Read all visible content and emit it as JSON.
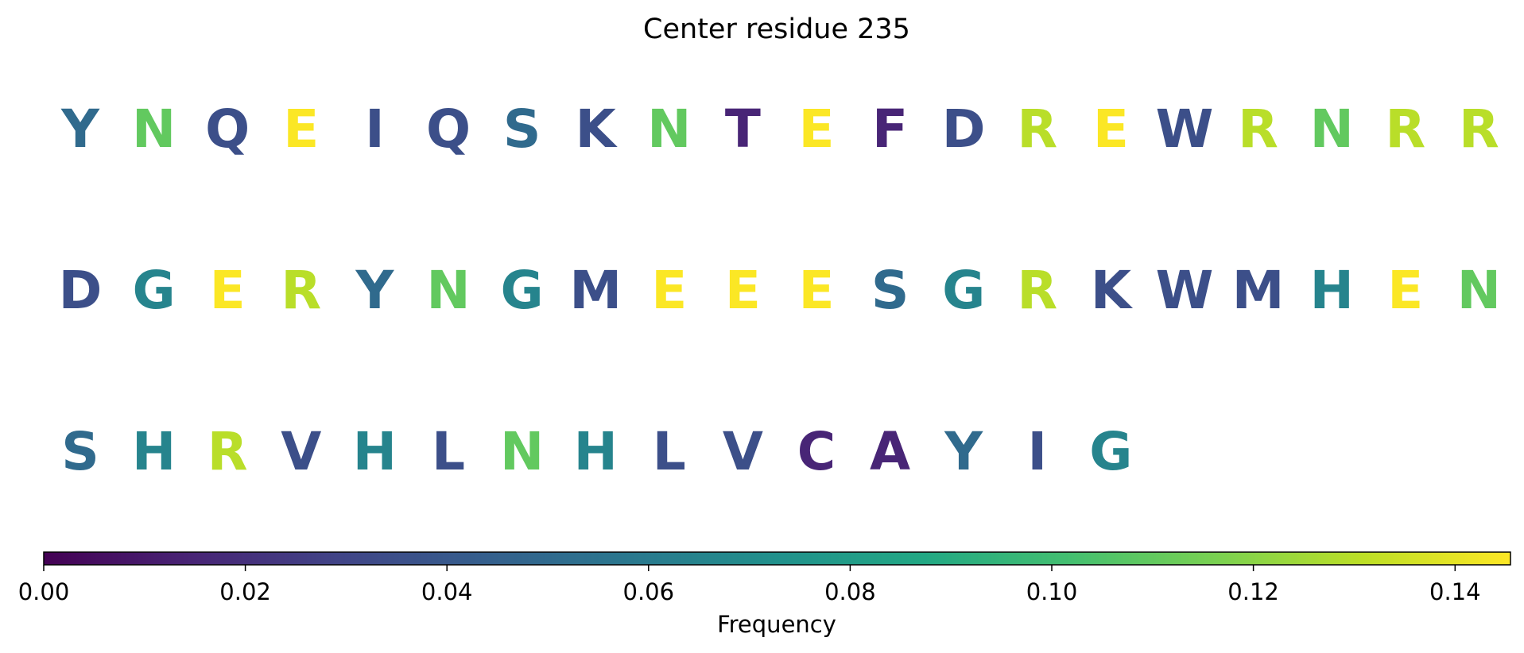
{
  "chart_data": {
    "type": "heatmap",
    "title": "Center residue 235",
    "cells": [
      {
        "letter": "Y",
        "value": 0.05
      },
      {
        "letter": "N",
        "value": 0.11
      },
      {
        "letter": "Q",
        "value": 0.035
      },
      {
        "letter": "E",
        "value": 0.145
      },
      {
        "letter": "I",
        "value": 0.035
      },
      {
        "letter": "Q",
        "value": 0.035
      },
      {
        "letter": "S",
        "value": 0.05
      },
      {
        "letter": "K",
        "value": 0.035
      },
      {
        "letter": "N",
        "value": 0.11
      },
      {
        "letter": "T",
        "value": 0.015
      },
      {
        "letter": "E",
        "value": 0.145
      },
      {
        "letter": "F",
        "value": 0.015
      },
      {
        "letter": "D",
        "value": 0.035
      },
      {
        "letter": "R",
        "value": 0.13
      },
      {
        "letter": "E",
        "value": 0.145
      },
      {
        "letter": "W",
        "value": 0.035
      },
      {
        "letter": "R",
        "value": 0.13
      },
      {
        "letter": "N",
        "value": 0.11
      },
      {
        "letter": "R",
        "value": 0.13
      },
      {
        "letter": "R",
        "value": 0.13
      },
      {
        "letter": "D",
        "value": 0.035
      },
      {
        "letter": "G",
        "value": 0.065
      },
      {
        "letter": "E",
        "value": 0.145
      },
      {
        "letter": "R",
        "value": 0.13
      },
      {
        "letter": "Y",
        "value": 0.05
      },
      {
        "letter": "N",
        "value": 0.11
      },
      {
        "letter": "G",
        "value": 0.065
      },
      {
        "letter": "M",
        "value": 0.035
      },
      {
        "letter": "E",
        "value": 0.145
      },
      {
        "letter": "E",
        "value": 0.145
      },
      {
        "letter": "E",
        "value": 0.145
      },
      {
        "letter": "S",
        "value": 0.05
      },
      {
        "letter": "G",
        "value": 0.065
      },
      {
        "letter": "R",
        "value": 0.13
      },
      {
        "letter": "K",
        "value": 0.035
      },
      {
        "letter": "W",
        "value": 0.035
      },
      {
        "letter": "M",
        "value": 0.035
      },
      {
        "letter": "H",
        "value": 0.065
      },
      {
        "letter": "E",
        "value": 0.145
      },
      {
        "letter": "N",
        "value": 0.11
      },
      {
        "letter": "S",
        "value": 0.05
      },
      {
        "letter": "H",
        "value": 0.065
      },
      {
        "letter": "R",
        "value": 0.13
      },
      {
        "letter": "V",
        "value": 0.035
      },
      {
        "letter": "H",
        "value": 0.065
      },
      {
        "letter": "L",
        "value": 0.035
      },
      {
        "letter": "N",
        "value": 0.11
      },
      {
        "letter": "H",
        "value": 0.065
      },
      {
        "letter": "L",
        "value": 0.035
      },
      {
        "letter": "V",
        "value": 0.035
      },
      {
        "letter": "C",
        "value": 0.015
      },
      {
        "letter": "A",
        "value": 0.015
      },
      {
        "letter": "Y",
        "value": 0.05
      },
      {
        "letter": "I",
        "value": 0.035
      },
      {
        "letter": "G",
        "value": 0.065
      }
    ],
    "letters_per_row": 20,
    "colorbar": {
      "label": "Frequency",
      "colormap": "viridis",
      "range": [
        0,
        0.1455
      ],
      "ticks": [
        0.0,
        0.02,
        0.04,
        0.06,
        0.08,
        0.1,
        0.12,
        0.14
      ],
      "tick_labels": [
        "0.00",
        "0.02",
        "0.04",
        "0.06",
        "0.08",
        "0.10",
        "0.12",
        "0.14"
      ],
      "orientation": "horizontal"
    }
  }
}
